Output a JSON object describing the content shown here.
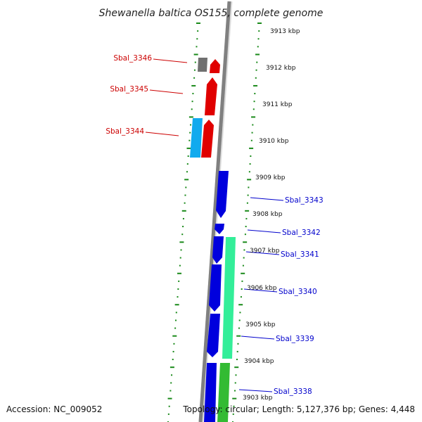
{
  "title": "Shewanella baltica OS155, complete genome",
  "footer": {
    "accession": "Accession: NC_009052",
    "topology": "Topology: circular; Length: 5,127,376 bp; Genes: 4,448"
  },
  "colors": {
    "backbone": "#808080",
    "dots": "#1a8a1a",
    "red_gene": "#e00000",
    "blue_gene": "#0000dd",
    "cyan_gene": "#11aaee",
    "seagreen_gene": "#33ee99",
    "green_gene": "#33bb33",
    "gray_gene": "#707070",
    "label_red": "#cc0000",
    "label_blue": "#0000cc"
  },
  "ticks": [
    "3913 kbp",
    "3912 kbp",
    "3911 kbp",
    "3910 kbp",
    "3909 kbp",
    "3908 kbp",
    "3907 kbp",
    "3906 kbp",
    "3905 kbp",
    "3904 kbp",
    "3903 kbp"
  ],
  "gene_labels_left": [
    "Sbal_3346",
    "Sbal_3345",
    "Sbal_3344"
  ],
  "gene_labels_right": [
    "Sbal_3343",
    "Sbal_3342",
    "Sbal_3341",
    "Sbal_3340",
    "Sbal_3339",
    "Sbal_3338"
  ]
}
